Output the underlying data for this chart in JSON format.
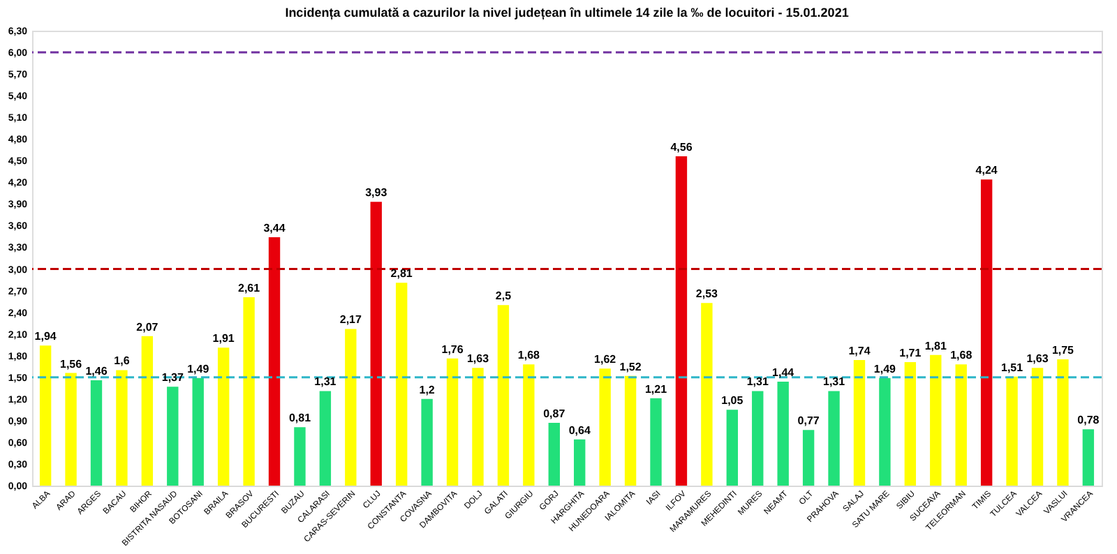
{
  "chart_data": {
    "type": "bar",
    "title": "Incidența cumulată a cazurilor la nivel județean în ultimele 14 zile   la ‰ de locuitori  - 15.01.2021",
    "categories": [
      "ALBA",
      "ARAD",
      "ARGES",
      "BACAU",
      "BIHOR",
      "BISTRITA NASAUD",
      "BOTOSANI",
      "BRAILA",
      "BRASOV",
      "BUCURESTI",
      "BUZAU",
      "CALARASI",
      "CARAS-SEVERIN",
      "CLUJ",
      "CONSTANTA",
      "COVASNA",
      "DAMBOVITA",
      "DOLJ",
      "GALATI",
      "GIURGIU",
      "GORJ",
      "HARGHITA",
      "HUNEDOARA",
      "IALOMITA",
      "IASI",
      "ILFOV",
      "MARAMURES",
      "MEHEDINTI",
      "MURES",
      "NEAMT",
      "OLT",
      "PRAHOVA",
      "SALAJ",
      "SATU MARE",
      "SIBIU",
      "SUCEAVA",
      "TELEORMAN",
      "TIMIS",
      "TULCEA",
      "VALCEA",
      "VASLUI",
      "VRANCEA"
    ],
    "values": [
      1.94,
      1.56,
      1.46,
      1.6,
      2.07,
      1.37,
      1.49,
      1.91,
      2.61,
      3.44,
      0.81,
      1.31,
      2.17,
      3.93,
      2.81,
      1.2,
      1.76,
      1.63,
      2.5,
      1.68,
      0.87,
      0.64,
      1.62,
      1.52,
      1.21,
      4.56,
      2.53,
      1.05,
      1.31,
      1.44,
      0.77,
      1.31,
      1.74,
      1.49,
      1.71,
      1.81,
      1.68,
      4.24,
      1.51,
      1.63,
      1.75,
      0.78
    ],
    "value_labels": [
      "1,94",
      "1,56",
      "1,46",
      "1,6",
      "2,07",
      "1,37",
      "1,49",
      "1,91",
      "2,61",
      "3,44",
      "0,81",
      "1,31",
      "2,17",
      "3,93",
      "2,81",
      "1,2",
      "1,76",
      "1,63",
      "2,5",
      "1,68",
      "0,87",
      "0,64",
      "1,62",
      "1,52",
      "1,21",
      "4,56",
      "2,53",
      "1,05",
      "1,31",
      "1,44",
      "0,77",
      "1,31",
      "1,74",
      "1,49",
      "1,71",
      "1,81",
      "1,68",
      "4,24",
      "1,51",
      "1,63",
      "1,75",
      "0,78"
    ],
    "colors": [
      "#ffff00",
      "#ffff00",
      "#22e07a",
      "#ffff00",
      "#ffff00",
      "#22e07a",
      "#22e07a",
      "#ffff00",
      "#ffff00",
      "#e8000b",
      "#22e07a",
      "#22e07a",
      "#ffff00",
      "#e8000b",
      "#ffff00",
      "#22e07a",
      "#ffff00",
      "#ffff00",
      "#ffff00",
      "#ffff00",
      "#22e07a",
      "#22e07a",
      "#ffff00",
      "#ffff00",
      "#22e07a",
      "#e8000b",
      "#ffff00",
      "#22e07a",
      "#22e07a",
      "#22e07a",
      "#22e07a",
      "#22e07a",
      "#ffff00",
      "#22e07a",
      "#ffff00",
      "#ffff00",
      "#ffff00",
      "#e8000b",
      "#ffff00",
      "#ffff00",
      "#ffff00",
      "#22e07a"
    ],
    "ylim": [
      0,
      6.3
    ],
    "yticks": [
      {
        "value": 0,
        "label": "0,00"
      },
      {
        "value": 0.3,
        "label": "0,30"
      },
      {
        "value": 0.6,
        "label": "0,60"
      },
      {
        "value": 0.9,
        "label": "0,90"
      },
      {
        "value": 1.2,
        "label": "1,20"
      },
      {
        "value": 1.5,
        "label": "1,50"
      },
      {
        "value": 1.8,
        "label": "1,80"
      },
      {
        "value": 2.1,
        "label": "2,10"
      },
      {
        "value": 2.4,
        "label": "2,40"
      },
      {
        "value": 2.7,
        "label": "2,70"
      },
      {
        "value": 3.0,
        "label": "3,00"
      },
      {
        "value": 3.3,
        "label": "3,30"
      },
      {
        "value": 3.6,
        "label": "3,60"
      },
      {
        "value": 3.9,
        "label": "3,90"
      },
      {
        "value": 4.2,
        "label": "4,20"
      },
      {
        "value": 4.5,
        "label": "4,50"
      },
      {
        "value": 4.8,
        "label": "4,80"
      },
      {
        "value": 5.1,
        "label": "5,10"
      },
      {
        "value": 5.4,
        "label": "5,40"
      },
      {
        "value": 5.7,
        "label": "5,70"
      },
      {
        "value": 6.0,
        "label": "6,00"
      },
      {
        "value": 6.3,
        "label": "6,30"
      }
    ],
    "ref_lines": [
      {
        "axis": "y",
        "value": 6.0,
        "color": "#7030a0",
        "line_style": "dashed"
      },
      {
        "axis": "y",
        "value": 3.0,
        "color": "#c00000",
        "line_style": "dashed"
      },
      {
        "axis": "y",
        "value": 1.5,
        "color": "#2eb6c8",
        "line_style": "dashed"
      }
    ],
    "legend": false,
    "grid": false
  }
}
